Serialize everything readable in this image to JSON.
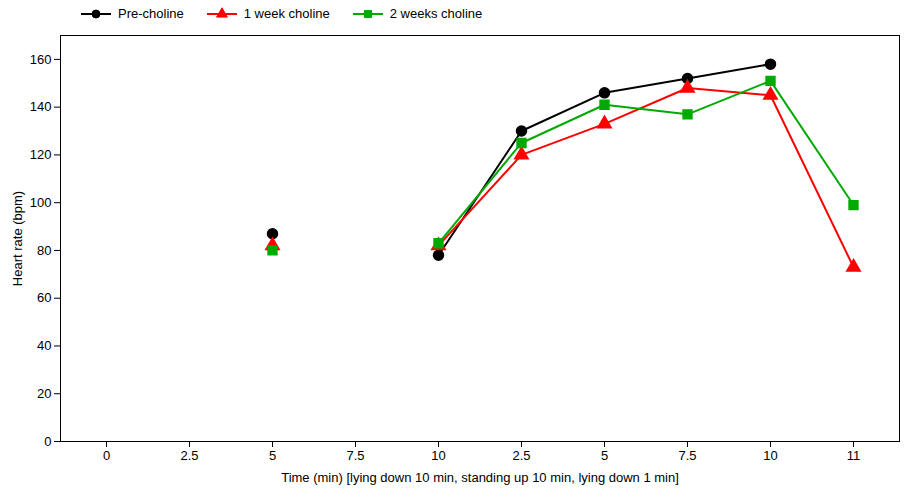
{
  "chart_data": {
    "type": "line",
    "categories": [
      "0",
      "2.5",
      "5",
      "7.5",
      "10",
      "2.5",
      "5",
      "7.5",
      "10",
      "11"
    ],
    "series": [
      {
        "name": "Pre-choline",
        "color": "#000000",
        "marker": "circle",
        "values": [
          null,
          null,
          87,
          null,
          78,
          130,
          146,
          152,
          158,
          null
        ]
      },
      {
        "name": "1 week choline",
        "color": "#ff0000",
        "marker": "triangle",
        "values": [
          null,
          null,
          82,
          null,
          82,
          120,
          133,
          148,
          145,
          73
        ]
      },
      {
        "name": "2 weeks choline",
        "color": "#00aa00",
        "marker": "square",
        "values": [
          null,
          null,
          80,
          null,
          83,
          125,
          141,
          137,
          151,
          99
        ]
      }
    ],
    "xlabel": "Time (min) [lying down 10 min, standing up 10 min, lying down 1 min]",
    "ylabel": "Heart rate (bpm)",
    "ylim": [
      0,
      170
    ],
    "yticks": [
      0,
      20,
      40,
      60,
      80,
      100,
      120,
      140,
      160
    ],
    "grid": false,
    "legend": "upper left"
  }
}
